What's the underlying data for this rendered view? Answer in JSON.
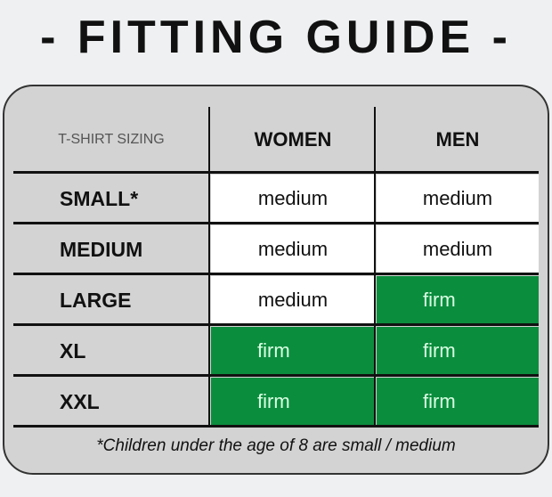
{
  "title": "- FITTING GUIDE -",
  "table": {
    "corner_label": "T-SHIRT SIZING",
    "columns": [
      "WOMEN",
      "MEN"
    ],
    "rows": [
      {
        "size": "SMALL*",
        "women": "medium",
        "men": "medium"
      },
      {
        "size": "MEDIUM",
        "women": "medium",
        "men": "medium"
      },
      {
        "size": "LARGE",
        "women": "medium",
        "men": "firm"
      },
      {
        "size": "XL",
        "women": "firm",
        "men": "firm"
      },
      {
        "size": "XXL",
        "women": "firm",
        "men": "firm"
      }
    ]
  },
  "footnote": "*Children under the age of 8 are small / medium",
  "colors": {
    "firm": "#0b8d3e",
    "medium": "#ffffff",
    "card": "#d3d3d3"
  }
}
